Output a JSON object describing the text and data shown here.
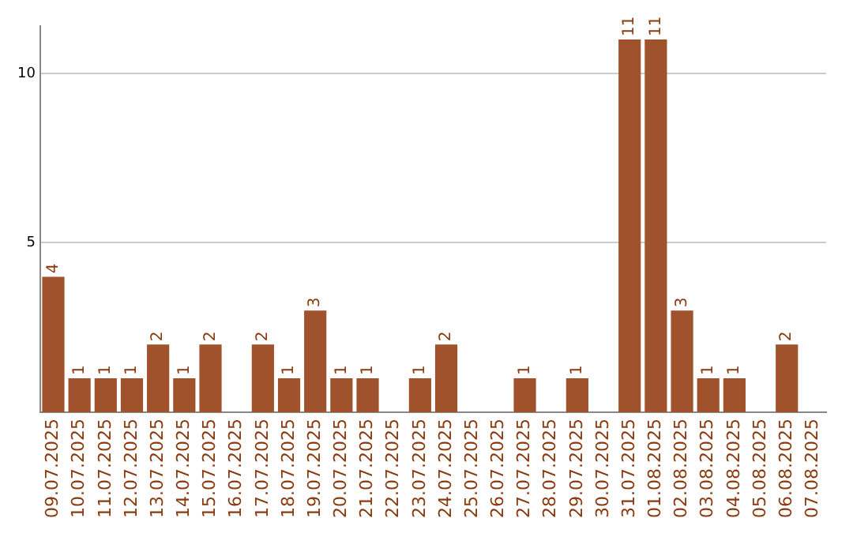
{
  "chart_data": {
    "type": "bar",
    "categories": [
      "09.07.2025",
      "10.07.2025",
      "11.07.2025",
      "12.07.2025",
      "13.07.2025",
      "14.07.2025",
      "15.07.2025",
      "16.07.2025",
      "17.07.2025",
      "18.07.2025",
      "19.07.2025",
      "20.07.2025",
      "21.07.2025",
      "22.07.2025",
      "23.07.2025",
      "24.07.2025",
      "25.07.2025",
      "26.07.2025",
      "27.07.2025",
      "28.07.2025",
      "29.07.2025",
      "30.07.2025",
      "31.07.2025",
      "01.08.2025",
      "02.08.2025",
      "03.08.2025",
      "04.08.2025",
      "05.08.2025",
      "06.08.2025",
      "07.08.2025"
    ],
    "values": [
      4,
      1,
      1,
      1,
      2,
      1,
      2,
      null,
      2,
      1,
      3,
      1,
      1,
      null,
      1,
      2,
      null,
      null,
      1,
      null,
      1,
      null,
      11,
      11,
      3,
      1,
      1,
      null,
      2,
      null
    ],
    "color": "#a0522d",
    "ylim": [
      0,
      11.4
    ],
    "yticks": [
      5,
      10
    ],
    "grid": "y",
    "data_labels": true,
    "legend": false
  }
}
